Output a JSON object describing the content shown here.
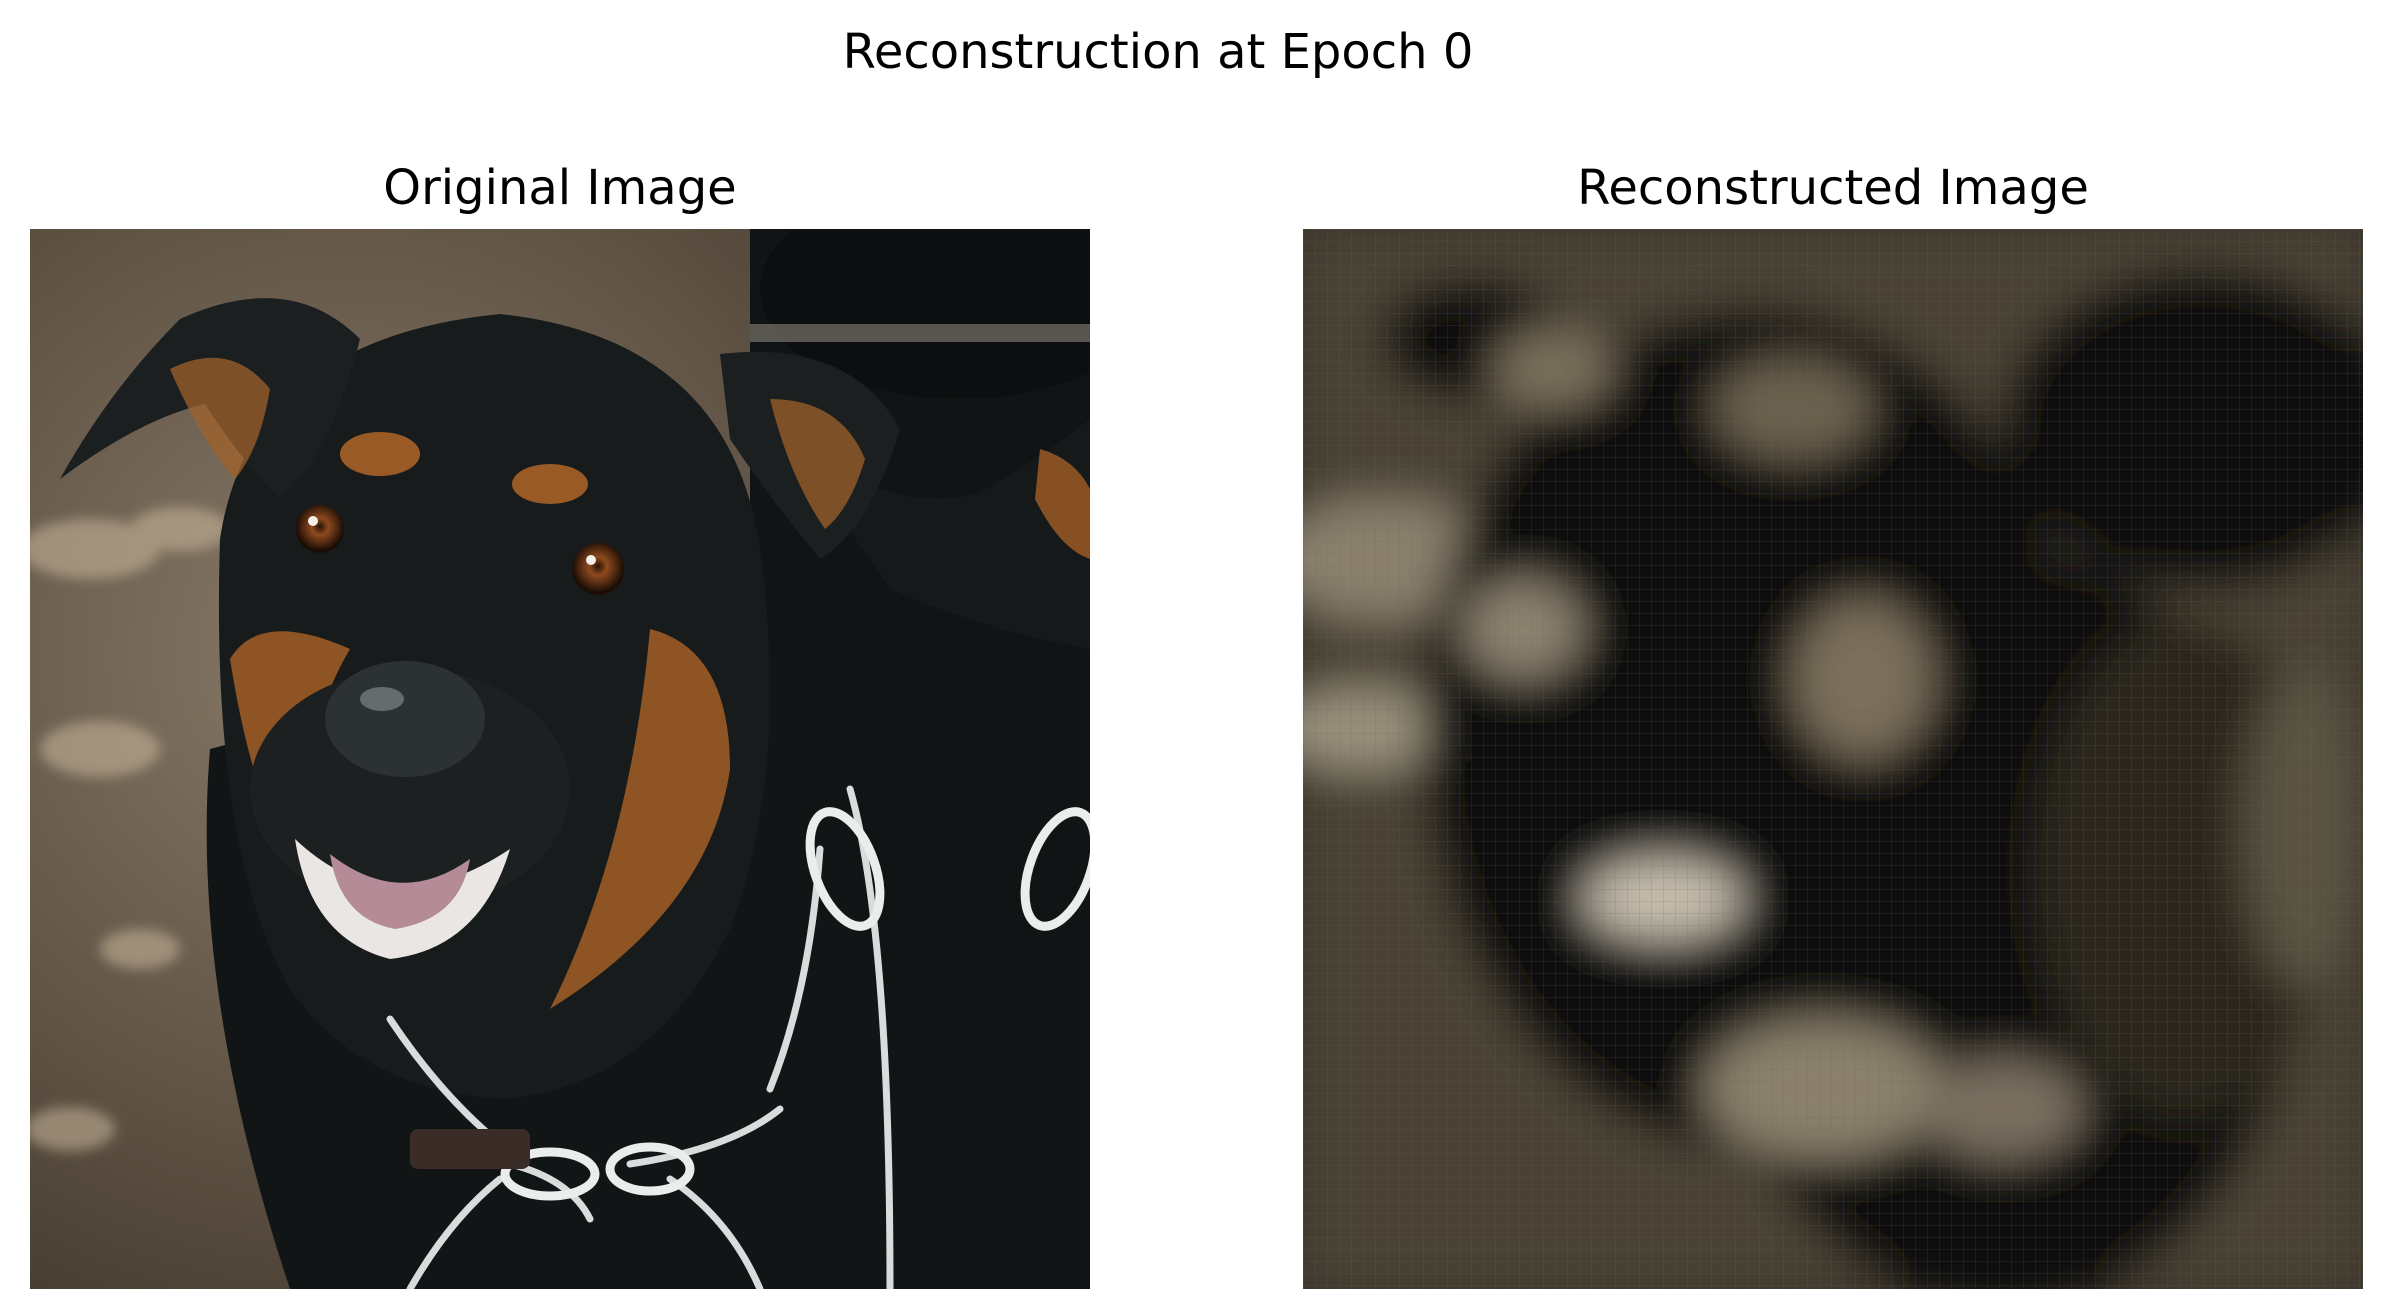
{
  "figure": {
    "title": "Reconstruction at Epoch 0"
  },
  "panels": [
    {
      "title": "Original Image",
      "content": "sharp photo of a black and tan rottweiler with a chain collar, mirrored background"
    },
    {
      "title": "Reconstructed Image",
      "content": "blurry dark sepia reconstruction of the same dog"
    }
  ],
  "colors": {
    "background": "#ffffff",
    "ground": "#6b5d4c",
    "fur": "#16191a",
    "tan": "#9a5a25",
    "chain": "#d9dcdc",
    "recon_bg": "#3a342b",
    "recon_dark": "#0c0b09"
  }
}
